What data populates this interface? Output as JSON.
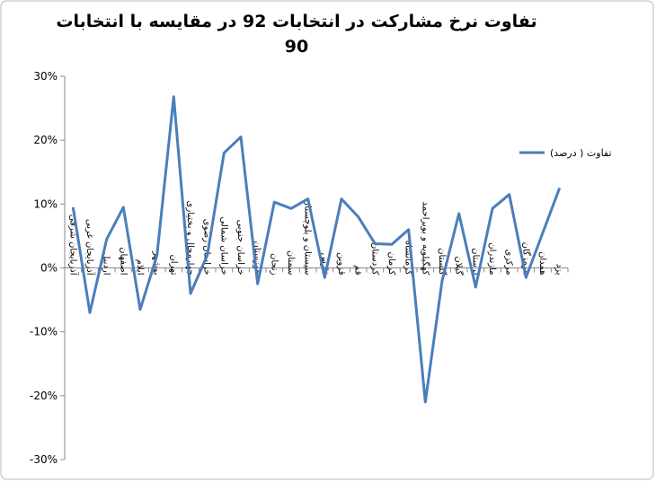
{
  "chart_data": {
    "type": "line",
    "title": "تفاوت نرخ مشارکت در انتخابات 92 در مقایسه با انتخابات 90",
    "categories": [
      "آذربایجان شرقی",
      "آذربایجان غربی",
      "اردبیل",
      "اصفهان",
      "ایلام",
      "بوشهر",
      "تهران",
      "چهارمحال و بختیاری",
      "خراسان رضوی",
      "خراسان شمالی",
      "خراسان جنوبی",
      "خوزستان",
      "زنجان",
      "سمنان",
      "سیستان و بلوچستان",
      "فارس",
      "قزوین",
      "قم",
      "کردستان",
      "کرمان",
      "کرمانشاه",
      "کهگیلویه و بویراحمد",
      "گلستان",
      "گیلان",
      "لرستان",
      "مازندران",
      "مرکزی",
      "هرمزگان",
      "همدان",
      "یزد"
    ],
    "series": [
      {
        "name": "تفاوت ( درصد)",
        "color": "#4a7ebb",
        "values": [
          9.5,
          -7,
          4.5,
          9.5,
          -6.5,
          2,
          26.8,
          -4,
          2,
          18,
          20.5,
          -2.5,
          10.3,
          9.3,
          10.8,
          -1.5,
          10.8,
          8,
          3.8,
          3.7,
          6,
          -21,
          -2,
          8.5,
          -3,
          9.3,
          11.5,
          -1.5,
          5.5,
          12.5
        ]
      }
    ],
    "ylim": [
      -30,
      30
    ],
    "yticks": [
      {
        "value": -30,
        "label": "-30%"
      },
      {
        "value": -20,
        "label": "-20%"
      },
      {
        "value": -10,
        "label": "-10%"
      },
      {
        "value": 0,
        "label": "0%"
      },
      {
        "value": 10,
        "label": "10%"
      },
      {
        "value": 20,
        "label": "20%"
      },
      {
        "value": 30,
        "label": "30%"
      }
    ],
    "legend": "right"
  }
}
